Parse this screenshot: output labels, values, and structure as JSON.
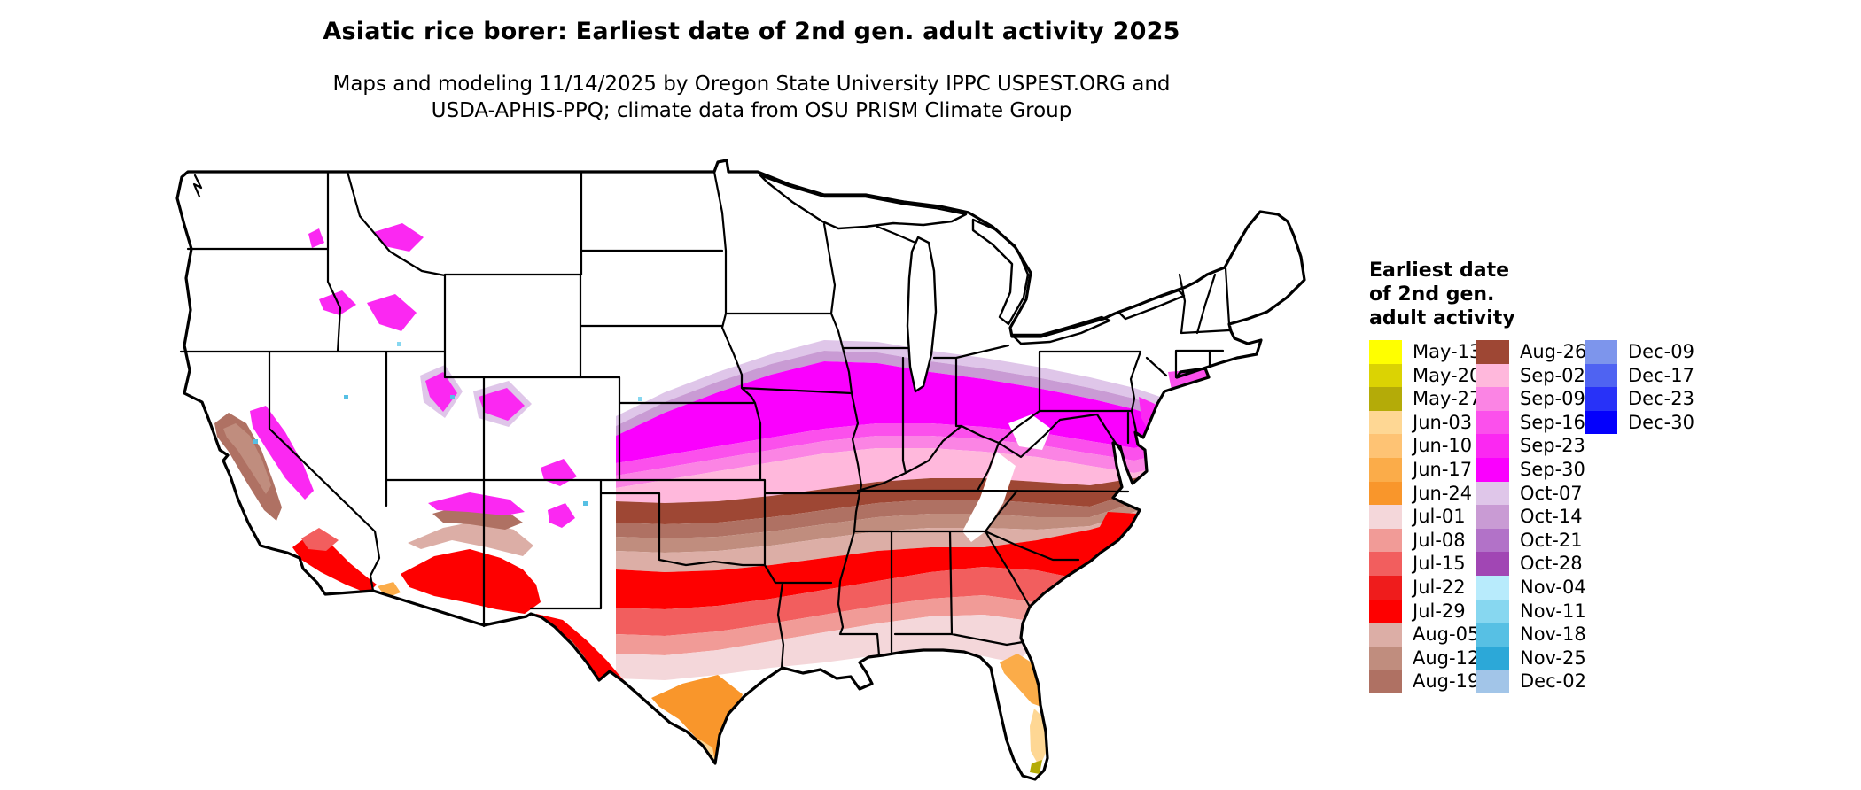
{
  "title": "Asiatic rice borer: Earliest date of 2nd gen. adult activity 2025",
  "subtitle": {
    "line1": "Maps and modeling 11/14/2025 by Oregon State University IPPC USPEST.ORG and",
    "line2": "USDA-APHIS-PPQ; climate data from OSU PRISM Climate Group"
  },
  "legend": {
    "title_lines": [
      "Earliest date",
      "of 2nd gen.",
      "adult activity"
    ],
    "columns": [
      {
        "entries": [
          {
            "label": "May-13",
            "color": "#FFFF00"
          },
          {
            "label": "May-20",
            "color": "#DBD303"
          },
          {
            "label": "May-27",
            "color": "#B4AB08"
          },
          {
            "label": "Jun-03",
            "color": "#FED794"
          },
          {
            "label": "Jun-10",
            "color": "#FEC374"
          },
          {
            "label": "Jun-17",
            "color": "#FBAC49"
          },
          {
            "label": "Jun-24",
            "color": "#F9962B"
          },
          {
            "label": "Jul-01",
            "color": "#F4D7DA"
          },
          {
            "label": "Jul-08",
            "color": "#F19B97"
          },
          {
            "label": "Jul-15",
            "color": "#F25E5E"
          },
          {
            "label": "Jul-22",
            "color": "#EF1C1C"
          },
          {
            "label": "Jul-29",
            "color": "#FE0000"
          },
          {
            "label": "Aug-05",
            "color": "#DCAEA6"
          },
          {
            "label": "Aug-12",
            "color": "#C08D7E"
          },
          {
            "label": "Aug-19",
            "color": "#AF7163"
          }
        ]
      },
      {
        "entries": [
          {
            "label": "Aug-26",
            "color": "#9E4734"
          },
          {
            "label": "Sep-02",
            "color": "#FFB8DC"
          },
          {
            "label": "Sep-09",
            "color": "#FB84E4"
          },
          {
            "label": "Sep-16",
            "color": "#FB50EC"
          },
          {
            "label": "Sep-23",
            "color": "#FB28F2"
          },
          {
            "label": "Sep-30",
            "color": "#FA00FE"
          },
          {
            "label": "Oct-07",
            "color": "#DFC6E9"
          },
          {
            "label": "Oct-14",
            "color": "#C99BD4"
          },
          {
            "label": "Oct-21",
            "color": "#B272C8"
          },
          {
            "label": "Oct-28",
            "color": "#A146B4"
          },
          {
            "label": "Nov-04",
            "color": "#B8EBFC"
          },
          {
            "label": "Nov-11",
            "color": "#87D7F0"
          },
          {
            "label": "Nov-18",
            "color": "#57C0E4"
          },
          {
            "label": "Nov-25",
            "color": "#2CA8D8"
          },
          {
            "label": "Dec-02",
            "color": "#A2C5E8"
          }
        ]
      },
      {
        "entries": [
          {
            "label": "Dec-09",
            "color": "#7D95EC"
          },
          {
            "label": "Dec-17",
            "color": "#4F63F2"
          },
          {
            "label": "Dec-23",
            "color": "#2832F8"
          },
          {
            "label": "Dec-30",
            "color": "#0400FC"
          }
        ]
      }
    ]
  },
  "map": {
    "outline_color": "#000000",
    "background_color": "#FFFFFF"
  }
}
